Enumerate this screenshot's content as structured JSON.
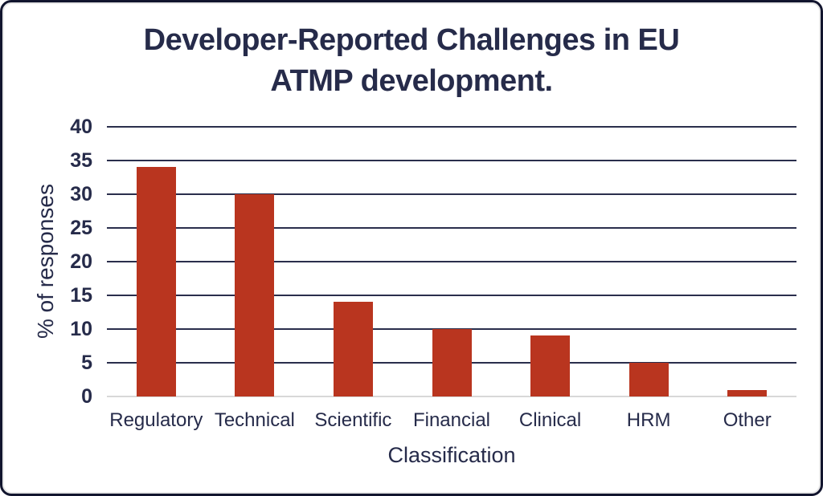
{
  "chart_data": {
    "type": "bar",
    "title": "Developer-Reported Challenges in EU ATMP development.",
    "title_lines": [
      "Developer-Reported Challenges in EU",
      "ATMP development."
    ],
    "xlabel": "Classification",
    "ylabel": "% of responses",
    "categories": [
      "Regulatory",
      "Technical",
      "Scientific",
      "Financial",
      "Clinical",
      "HRM",
      "Other"
    ],
    "values": [
      34,
      30,
      14,
      10,
      9,
      5,
      1
    ],
    "yticks": [
      0,
      5,
      10,
      15,
      20,
      25,
      30,
      35,
      40
    ],
    "ylim": [
      0,
      40
    ],
    "grid": "horizontal",
    "legend": "none",
    "bar_color": "#B9351F",
    "gridline_color": "#2A2E4C",
    "baseline_color": "#D8D8D8",
    "text_color": "#262B4A",
    "frame_border_color": "#12152E"
  }
}
